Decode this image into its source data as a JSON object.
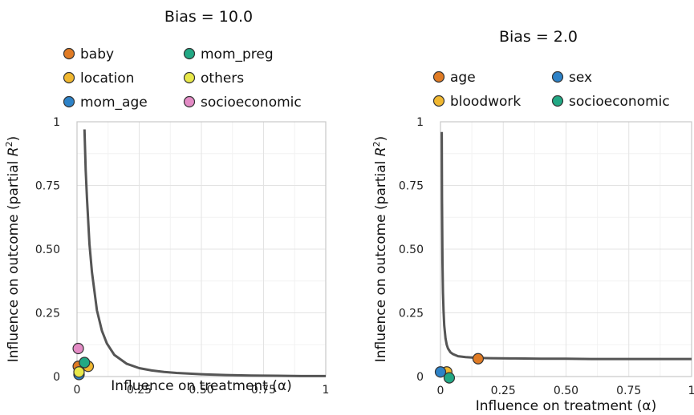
{
  "chart_data": [
    {
      "type": "scatter",
      "title": "Bias = 10.0",
      "xlabel": "Influence on treatment (α)",
      "ylabel_prefix": "Influence on outcome (partial ",
      "ylabel_var": "R",
      "ylabel_sup": "2",
      "ylabel_suffix": ")",
      "xlim": [
        0,
        1
      ],
      "ylim": [
        0,
        1
      ],
      "xticks": [
        {
          "value": 0,
          "label": "0"
        },
        {
          "value": 0.25,
          "label": "0.25"
        },
        {
          "value": 0.5,
          "label": "0.50"
        },
        {
          "value": 0.75,
          "label": "0.75"
        },
        {
          "value": 1,
          "label": "1"
        }
      ],
      "yticks": [
        {
          "value": 0,
          "label": "0"
        },
        {
          "value": 0.25,
          "label": "0.25"
        },
        {
          "value": 0.5,
          "label": "0.50"
        },
        {
          "value": 0.75,
          "label": "0.75"
        },
        {
          "value": 1,
          "label": "1"
        }
      ],
      "grid": true,
      "legend_columns": 2,
      "legend_placement": "above",
      "curve": {
        "color": "#555555",
        "x": [
          0.03,
          0.035,
          0.04,
          0.05,
          0.06,
          0.08,
          0.1,
          0.12,
          0.15,
          0.2,
          0.25,
          0.3,
          0.35,
          0.4,
          0.5,
          0.6,
          0.7,
          0.8,
          0.9,
          1.0
        ],
        "y": [
          0.97,
          0.81,
          0.7,
          0.52,
          0.41,
          0.26,
          0.18,
          0.13,
          0.085,
          0.05,
          0.033,
          0.024,
          0.018,
          0.014,
          0.009,
          0.006,
          0.004,
          0.003,
          0.002,
          0.002
        ]
      },
      "points": [
        {
          "name": "baby",
          "color": "#e07b24",
          "x": 0.005,
          "y": 0.04
        },
        {
          "name": "location",
          "color": "#f0b730",
          "x": 0.045,
          "y": 0.04
        },
        {
          "name": "mom_age",
          "color": "#2d82c7",
          "x": 0.008,
          "y": 0.008
        },
        {
          "name": "mom_preg",
          "color": "#22a884",
          "x": 0.03,
          "y": 0.055
        },
        {
          "name": "others",
          "color": "#e8e84a",
          "x": 0.008,
          "y": 0.018
        },
        {
          "name": "socioeconomic",
          "color": "#e38bc5",
          "x": 0.005,
          "y": 0.11
        }
      ]
    },
    {
      "type": "scatter",
      "title": "Bias = 2.0",
      "xlabel": "Influence on treatment (α)",
      "ylabel_prefix": "Influence on outcome (partial ",
      "ylabel_var": "R",
      "ylabel_sup": "2",
      "ylabel_suffix": ")",
      "xlim": [
        0,
        1
      ],
      "ylim": [
        0,
        1
      ],
      "xticks": [
        {
          "value": 0,
          "label": "0"
        },
        {
          "value": 0.25,
          "label": "0.25"
        },
        {
          "value": 0.5,
          "label": "0.50"
        },
        {
          "value": 0.75,
          "label": "0.75"
        },
        {
          "value": 1,
          "label": "1"
        }
      ],
      "yticks": [
        {
          "value": 0,
          "label": "0"
        },
        {
          "value": 0.25,
          "label": "0.25"
        },
        {
          "value": 0.5,
          "label": "0.50"
        },
        {
          "value": 0.75,
          "label": "0.75"
        },
        {
          "value": 1,
          "label": "1"
        }
      ],
      "grid": true,
      "legend_columns": 2,
      "legend_placement": "above",
      "curve": {
        "color": "#555555",
        "x": [
          0.005,
          0.006,
          0.008,
          0.01,
          0.012,
          0.015,
          0.02,
          0.025,
          0.03,
          0.04,
          0.05,
          0.07,
          0.1,
          0.15,
          0.2,
          0.3,
          0.4,
          0.5,
          0.6,
          0.7,
          0.8,
          0.9,
          1.0
        ],
        "y": [
          0.96,
          0.7,
          0.45,
          0.33,
          0.26,
          0.2,
          0.15,
          0.125,
          0.11,
          0.095,
          0.088,
          0.08,
          0.076,
          0.073,
          0.072,
          0.071,
          0.07,
          0.07,
          0.069,
          0.069,
          0.069,
          0.069,
          0.069
        ]
      },
      "points": [
        {
          "name": "age",
          "color": "#e07b24",
          "x": 0.15,
          "y": 0.07
        },
        {
          "name": "bloodwork",
          "color": "#f0b730",
          "x": 0.025,
          "y": 0.018
        },
        {
          "name": "sex",
          "color": "#2d82c7",
          "x": 0.0,
          "y": 0.018
        },
        {
          "name": "socioeconomic",
          "color": "#22a884",
          "x": 0.035,
          "y": -0.005
        }
      ]
    }
  ]
}
